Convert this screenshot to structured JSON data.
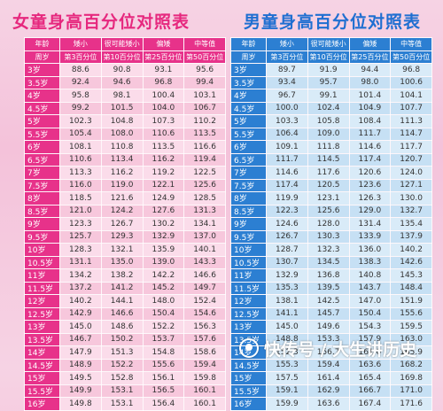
{
  "girl": {
    "title": "女童身高百分位对照表",
    "header_row1": [
      "年龄",
      "矮小",
      "很可能矮小",
      "偏矮",
      "中等值"
    ],
    "header_row2": [
      "周岁",
      "第3百分位",
      "第10百分位",
      "第25百分位",
      "第50百分位"
    ],
    "rows": [
      [
        "3岁",
        "88.6",
        "90.8",
        "93.1",
        "95.6"
      ],
      [
        "3.5岁",
        "92.4",
        "94.6",
        "96.8",
        "99.4"
      ],
      [
        "4岁",
        "95.8",
        "98.1",
        "100.4",
        "103.1"
      ],
      [
        "4.5岁",
        "99.2",
        "101.5",
        "104.0",
        "106.7"
      ],
      [
        "5岁",
        "102.3",
        "104.8",
        "107.3",
        "110.2"
      ],
      [
        "5.5岁",
        "105.4",
        "108.0",
        "110.6",
        "113.5"
      ],
      [
        "6岁",
        "108.1",
        "110.8",
        "113.5",
        "116.6"
      ],
      [
        "6.5岁",
        "110.6",
        "113.4",
        "116.2",
        "119.4"
      ],
      [
        "7岁",
        "113.3",
        "116.2",
        "119.2",
        "122.5"
      ],
      [
        "7.5岁",
        "116.0",
        "119.0",
        "122.1",
        "125.6"
      ],
      [
        "8岁",
        "118.5",
        "121.6",
        "124.9",
        "128.5"
      ],
      [
        "8.5岁",
        "121.0",
        "124.2",
        "127.6",
        "131.3"
      ],
      [
        "9岁",
        "123.3",
        "126.7",
        "130.2",
        "134.1"
      ],
      [
        "9.5岁",
        "125.7",
        "129.3",
        "132.9",
        "137.0"
      ],
      [
        "10岁",
        "128.3",
        "132.1",
        "135.9",
        "140.1"
      ],
      [
        "10.5岁",
        "131.1",
        "135.0",
        "139.0",
        "143.3"
      ],
      [
        "11岁",
        "134.2",
        "138.2",
        "142.2",
        "146.6"
      ],
      [
        "11.5岁",
        "137.2",
        "141.2",
        "145.2",
        "149.7"
      ],
      [
        "12岁",
        "140.2",
        "144.1",
        "148.0",
        "152.4"
      ],
      [
        "12.5岁",
        "142.9",
        "146.6",
        "150.4",
        "154.6"
      ],
      [
        "13岁",
        "145.0",
        "148.6",
        "152.2",
        "156.3"
      ],
      [
        "13.5岁",
        "146.7",
        "150.2",
        "153.7",
        "157.6"
      ],
      [
        "14岁",
        "147.9",
        "151.3",
        "154.8",
        "158.6"
      ],
      [
        "14.5岁",
        "148.9",
        "152.2",
        "155.6",
        "159.4"
      ],
      [
        "15岁",
        "149.5",
        "152.8",
        "156.1",
        "159.8"
      ],
      [
        "15.5岁",
        "149.9",
        "153.1",
        "156.5",
        "160.1"
      ],
      [
        "16岁",
        "149.8",
        "153.1",
        "156.4",
        "160.1"
      ]
    ]
  },
  "boy": {
    "title": "男童身高百分位对照表",
    "header_row1": [
      "年龄",
      "矮小",
      "很可能矮小",
      "偏矮",
      "中等值"
    ],
    "header_row2": [
      "周岁",
      "第3百分位",
      "第10百分位",
      "第25百分位",
      "第50百分位"
    ],
    "rows": [
      [
        "3岁",
        "89.7",
        "91.9",
        "94.4",
        "96.8"
      ],
      [
        "3.5岁",
        "93.4",
        "95.7",
        "98.0",
        "100.6"
      ],
      [
        "4岁",
        "96.7",
        "99.1",
        "101.4",
        "104.1"
      ],
      [
        "4.5岁",
        "100.0",
        "102.4",
        "104.9",
        "107.7"
      ],
      [
        "5岁",
        "103.3",
        "105.8",
        "108.4",
        "111.3"
      ],
      [
        "5.5岁",
        "106.4",
        "109.0",
        "111.7",
        "114.7"
      ],
      [
        "6岁",
        "109.1",
        "111.8",
        "114.6",
        "117.7"
      ],
      [
        "6.5岁",
        "111.7",
        "114.5",
        "117.4",
        "120.7"
      ],
      [
        "7岁",
        "114.6",
        "117.6",
        "120.6",
        "124.0"
      ],
      [
        "7.5岁",
        "117.4",
        "120.5",
        "123.6",
        "127.1"
      ],
      [
        "8岁",
        "119.9",
        "123.1",
        "126.3",
        "130.0"
      ],
      [
        "8.5岁",
        "122.3",
        "125.6",
        "129.0",
        "132.7"
      ],
      [
        "9岁",
        "124.6",
        "128.0",
        "131.4",
        "135.4"
      ],
      [
        "9.5岁",
        "126.7",
        "130.3",
        "133.9",
        "137.9"
      ],
      [
        "10岁",
        "128.7",
        "132.3",
        "136.0",
        "140.2"
      ],
      [
        "10.5岁",
        "130.7",
        "134.5",
        "138.3",
        "142.6"
      ],
      [
        "11岁",
        "132.9",
        "136.8",
        "140.8",
        "145.3"
      ],
      [
        "11.5岁",
        "135.3",
        "139.5",
        "143.7",
        "148.4"
      ],
      [
        "12岁",
        "138.1",
        "142.5",
        "147.0",
        "151.9"
      ],
      [
        "12.5岁",
        "141.1",
        "145.7",
        "150.4",
        "155.6"
      ],
      [
        "13岁",
        "145.0",
        "149.6",
        "154.3",
        "159.5"
      ],
      [
        "13.5岁",
        "148.8",
        "153.3",
        "157.9",
        "163.0"
      ],
      [
        "14岁",
        "152.3",
        "156.7",
        "161.0",
        "165.9"
      ],
      [
        "14.5岁",
        "155.3",
        "159.4",
        "163.6",
        "168.2"
      ],
      [
        "15岁",
        "157.5",
        "161.4",
        "165.4",
        "169.8"
      ],
      [
        "15.5岁",
        "159.1",
        "162.9",
        "166.7",
        "171.0"
      ],
      [
        "16岁",
        "159.9",
        "163.6",
        "167.4",
        "171.6"
      ]
    ]
  },
  "watermark": {
    "text": "快传号 / 大生讲历史"
  }
}
